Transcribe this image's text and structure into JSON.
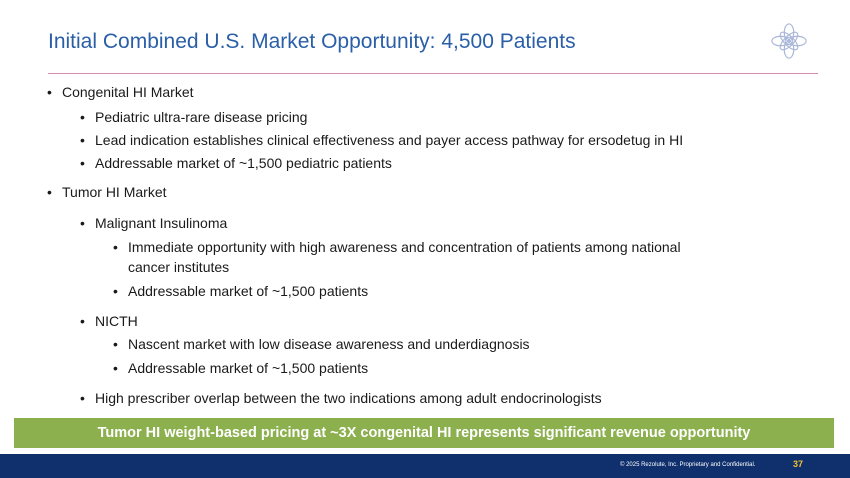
{
  "slide": {
    "title": "Initial Combined U.S. Market Opportunity: 4,500 Patients",
    "bullet_glyph": "•",
    "items": [
      "Congenital HI Market",
      "Pediatric ultra-rare disease pricing",
      "Lead indication establishes clinical effectiveness and payer access pathway for ersodetug in HI",
      "Addressable market of ~1,500 pediatric patients",
      "Tumor HI Market",
      "Malignant Insulinoma",
      "Immediate opportunity with high awareness and concentration of patients among national",
      "cancer institutes",
      "Addressable market of ~1,500 patients",
      "NICTH",
      "Nascent market with low disease awareness and underdiagnosis",
      "Addressable market of ~1,500 patients",
      "High prescriber overlap between the two indications among adult endocrinologists"
    ],
    "banner": "Tumor HI weight-based pricing at ~3X congenital HI represents significant revenue opportunity"
  },
  "footer": {
    "copyright": "© 2025 Rezolute, Inc. Proprietary and Confidential.",
    "page_number": "37"
  },
  "colors": {
    "title": "#2a5fa8",
    "rule": "#d58cb0",
    "banner": "#8db04f",
    "footer": "#0f2f6d",
    "page_number": "#f2c230"
  },
  "icons": {
    "logo": "flower-logo-icon"
  }
}
